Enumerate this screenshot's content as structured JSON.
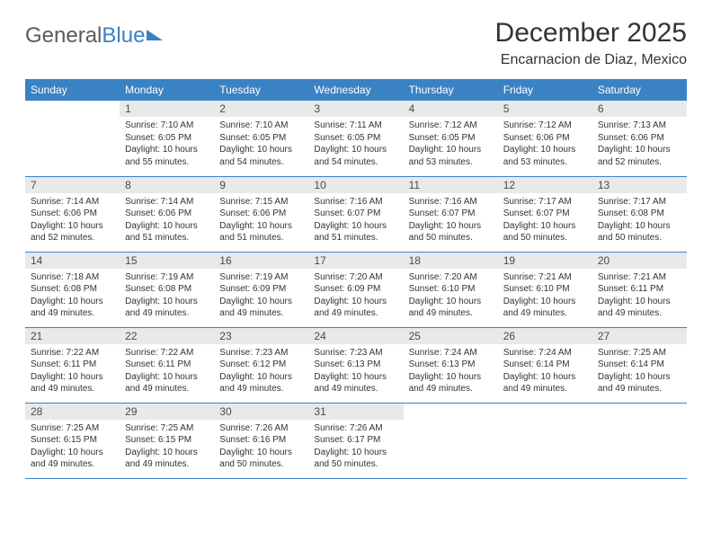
{
  "brand": {
    "part1": "General",
    "part2": "Blue"
  },
  "title": "December 2025",
  "location": "Encarnacion de Diaz, Mexico",
  "colors": {
    "header_bg": "#3b82c4",
    "daynum_bg": "#e8e9ea",
    "text": "#333333",
    "logo_gray": "#5a5a5a"
  },
  "day_headers": [
    "Sunday",
    "Monday",
    "Tuesday",
    "Wednesday",
    "Thursday",
    "Friday",
    "Saturday"
  ],
  "weeks": [
    [
      null,
      {
        "n": "1",
        "sr": "Sunrise: 7:10 AM",
        "ss": "Sunset: 6:05 PM",
        "d1": "Daylight: 10 hours",
        "d2": "and 55 minutes."
      },
      {
        "n": "2",
        "sr": "Sunrise: 7:10 AM",
        "ss": "Sunset: 6:05 PM",
        "d1": "Daylight: 10 hours",
        "d2": "and 54 minutes."
      },
      {
        "n": "3",
        "sr": "Sunrise: 7:11 AM",
        "ss": "Sunset: 6:05 PM",
        "d1": "Daylight: 10 hours",
        "d2": "and 54 minutes."
      },
      {
        "n": "4",
        "sr": "Sunrise: 7:12 AM",
        "ss": "Sunset: 6:05 PM",
        "d1": "Daylight: 10 hours",
        "d2": "and 53 minutes."
      },
      {
        "n": "5",
        "sr": "Sunrise: 7:12 AM",
        "ss": "Sunset: 6:06 PM",
        "d1": "Daylight: 10 hours",
        "d2": "and 53 minutes."
      },
      {
        "n": "6",
        "sr": "Sunrise: 7:13 AM",
        "ss": "Sunset: 6:06 PM",
        "d1": "Daylight: 10 hours",
        "d2": "and 52 minutes."
      }
    ],
    [
      {
        "n": "7",
        "sr": "Sunrise: 7:14 AM",
        "ss": "Sunset: 6:06 PM",
        "d1": "Daylight: 10 hours",
        "d2": "and 52 minutes."
      },
      {
        "n": "8",
        "sr": "Sunrise: 7:14 AM",
        "ss": "Sunset: 6:06 PM",
        "d1": "Daylight: 10 hours",
        "d2": "and 51 minutes."
      },
      {
        "n": "9",
        "sr": "Sunrise: 7:15 AM",
        "ss": "Sunset: 6:06 PM",
        "d1": "Daylight: 10 hours",
        "d2": "and 51 minutes."
      },
      {
        "n": "10",
        "sr": "Sunrise: 7:16 AM",
        "ss": "Sunset: 6:07 PM",
        "d1": "Daylight: 10 hours",
        "d2": "and 51 minutes."
      },
      {
        "n": "11",
        "sr": "Sunrise: 7:16 AM",
        "ss": "Sunset: 6:07 PM",
        "d1": "Daylight: 10 hours",
        "d2": "and 50 minutes."
      },
      {
        "n": "12",
        "sr": "Sunrise: 7:17 AM",
        "ss": "Sunset: 6:07 PM",
        "d1": "Daylight: 10 hours",
        "d2": "and 50 minutes."
      },
      {
        "n": "13",
        "sr": "Sunrise: 7:17 AM",
        "ss": "Sunset: 6:08 PM",
        "d1": "Daylight: 10 hours",
        "d2": "and 50 minutes."
      }
    ],
    [
      {
        "n": "14",
        "sr": "Sunrise: 7:18 AM",
        "ss": "Sunset: 6:08 PM",
        "d1": "Daylight: 10 hours",
        "d2": "and 49 minutes."
      },
      {
        "n": "15",
        "sr": "Sunrise: 7:19 AM",
        "ss": "Sunset: 6:08 PM",
        "d1": "Daylight: 10 hours",
        "d2": "and 49 minutes."
      },
      {
        "n": "16",
        "sr": "Sunrise: 7:19 AM",
        "ss": "Sunset: 6:09 PM",
        "d1": "Daylight: 10 hours",
        "d2": "and 49 minutes."
      },
      {
        "n": "17",
        "sr": "Sunrise: 7:20 AM",
        "ss": "Sunset: 6:09 PM",
        "d1": "Daylight: 10 hours",
        "d2": "and 49 minutes."
      },
      {
        "n": "18",
        "sr": "Sunrise: 7:20 AM",
        "ss": "Sunset: 6:10 PM",
        "d1": "Daylight: 10 hours",
        "d2": "and 49 minutes."
      },
      {
        "n": "19",
        "sr": "Sunrise: 7:21 AM",
        "ss": "Sunset: 6:10 PM",
        "d1": "Daylight: 10 hours",
        "d2": "and 49 minutes."
      },
      {
        "n": "20",
        "sr": "Sunrise: 7:21 AM",
        "ss": "Sunset: 6:11 PM",
        "d1": "Daylight: 10 hours",
        "d2": "and 49 minutes."
      }
    ],
    [
      {
        "n": "21",
        "sr": "Sunrise: 7:22 AM",
        "ss": "Sunset: 6:11 PM",
        "d1": "Daylight: 10 hours",
        "d2": "and 49 minutes."
      },
      {
        "n": "22",
        "sr": "Sunrise: 7:22 AM",
        "ss": "Sunset: 6:11 PM",
        "d1": "Daylight: 10 hours",
        "d2": "and 49 minutes."
      },
      {
        "n": "23",
        "sr": "Sunrise: 7:23 AM",
        "ss": "Sunset: 6:12 PM",
        "d1": "Daylight: 10 hours",
        "d2": "and 49 minutes."
      },
      {
        "n": "24",
        "sr": "Sunrise: 7:23 AM",
        "ss": "Sunset: 6:13 PM",
        "d1": "Daylight: 10 hours",
        "d2": "and 49 minutes."
      },
      {
        "n": "25",
        "sr": "Sunrise: 7:24 AM",
        "ss": "Sunset: 6:13 PM",
        "d1": "Daylight: 10 hours",
        "d2": "and 49 minutes."
      },
      {
        "n": "26",
        "sr": "Sunrise: 7:24 AM",
        "ss": "Sunset: 6:14 PM",
        "d1": "Daylight: 10 hours",
        "d2": "and 49 minutes."
      },
      {
        "n": "27",
        "sr": "Sunrise: 7:25 AM",
        "ss": "Sunset: 6:14 PM",
        "d1": "Daylight: 10 hours",
        "d2": "and 49 minutes."
      }
    ],
    [
      {
        "n": "28",
        "sr": "Sunrise: 7:25 AM",
        "ss": "Sunset: 6:15 PM",
        "d1": "Daylight: 10 hours",
        "d2": "and 49 minutes."
      },
      {
        "n": "29",
        "sr": "Sunrise: 7:25 AM",
        "ss": "Sunset: 6:15 PM",
        "d1": "Daylight: 10 hours",
        "d2": "and 49 minutes."
      },
      {
        "n": "30",
        "sr": "Sunrise: 7:26 AM",
        "ss": "Sunset: 6:16 PM",
        "d1": "Daylight: 10 hours",
        "d2": "and 50 minutes."
      },
      {
        "n": "31",
        "sr": "Sunrise: 7:26 AM",
        "ss": "Sunset: 6:17 PM",
        "d1": "Daylight: 10 hours",
        "d2": "and 50 minutes."
      },
      null,
      null,
      null
    ]
  ]
}
